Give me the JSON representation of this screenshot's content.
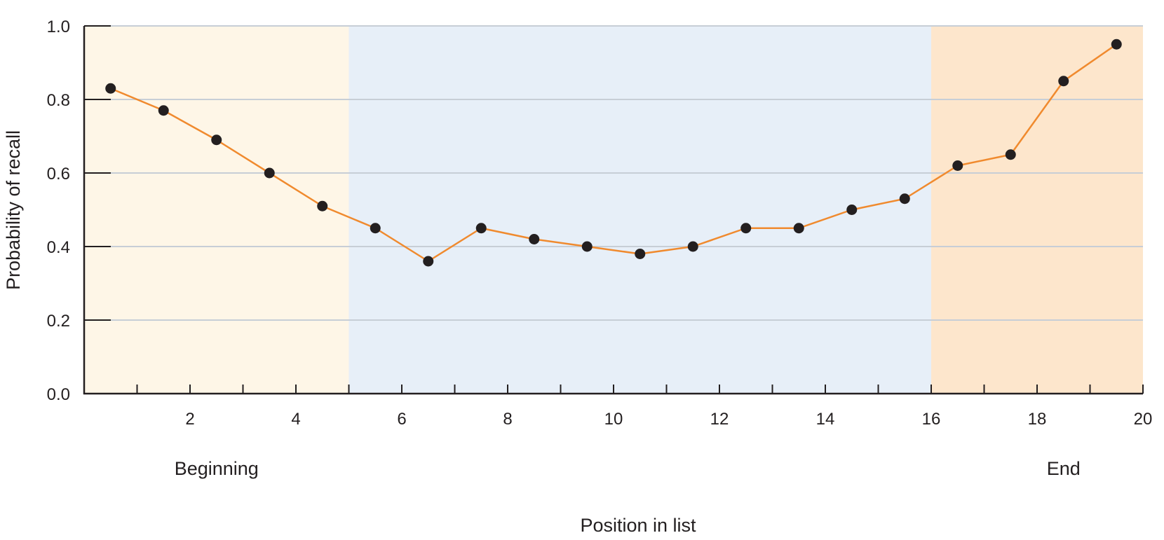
{
  "chart_data": {
    "type": "line",
    "title": "",
    "xlabel": "Position in list",
    "ylabel": "Probability of recall",
    "xlim": [
      0,
      20
    ],
    "ylim": [
      0,
      1
    ],
    "x_ticks": [
      2,
      4,
      6,
      8,
      10,
      12,
      14,
      16,
      18,
      20
    ],
    "x_minor_ticks": [
      1,
      3,
      5,
      7,
      9,
      11,
      13,
      15,
      17,
      19
    ],
    "y_ticks": [
      "0.0",
      "0.2",
      "0.4",
      "0.6",
      "0.8",
      "1.0"
    ],
    "grid": "horizontal",
    "regions": [
      {
        "name": "primacy",
        "x_from": 0,
        "x_to": 5,
        "color": "#fef6e7"
      },
      {
        "name": "middle",
        "x_from": 5,
        "x_to": 16,
        "color": "#e7eff8"
      },
      {
        "name": "recency",
        "x_from": 16,
        "x_to": 20,
        "color": "#fde6cc"
      }
    ],
    "region_labels": [
      {
        "text": "Beginning",
        "x": 2.5
      },
      {
        "text": "End",
        "x": 18.5
      }
    ],
    "series": [
      {
        "name": "",
        "color": "#f08a2e",
        "marker_color": "#231f20",
        "x": [
          0.5,
          1.5,
          2.5,
          3.5,
          4.5,
          5.5,
          6.5,
          7.5,
          8.5,
          9.5,
          10.5,
          11.5,
          12.5,
          13.5,
          14.5,
          15.5,
          16.5,
          17.5,
          18.5,
          19.5
        ],
        "y": [
          0.83,
          0.77,
          0.69,
          0.6,
          0.51,
          0.45,
          0.36,
          0.45,
          0.42,
          0.4,
          0.38,
          0.4,
          0.45,
          0.45,
          0.5,
          0.53,
          0.62,
          0.65,
          0.85,
          0.95
        ]
      }
    ]
  }
}
